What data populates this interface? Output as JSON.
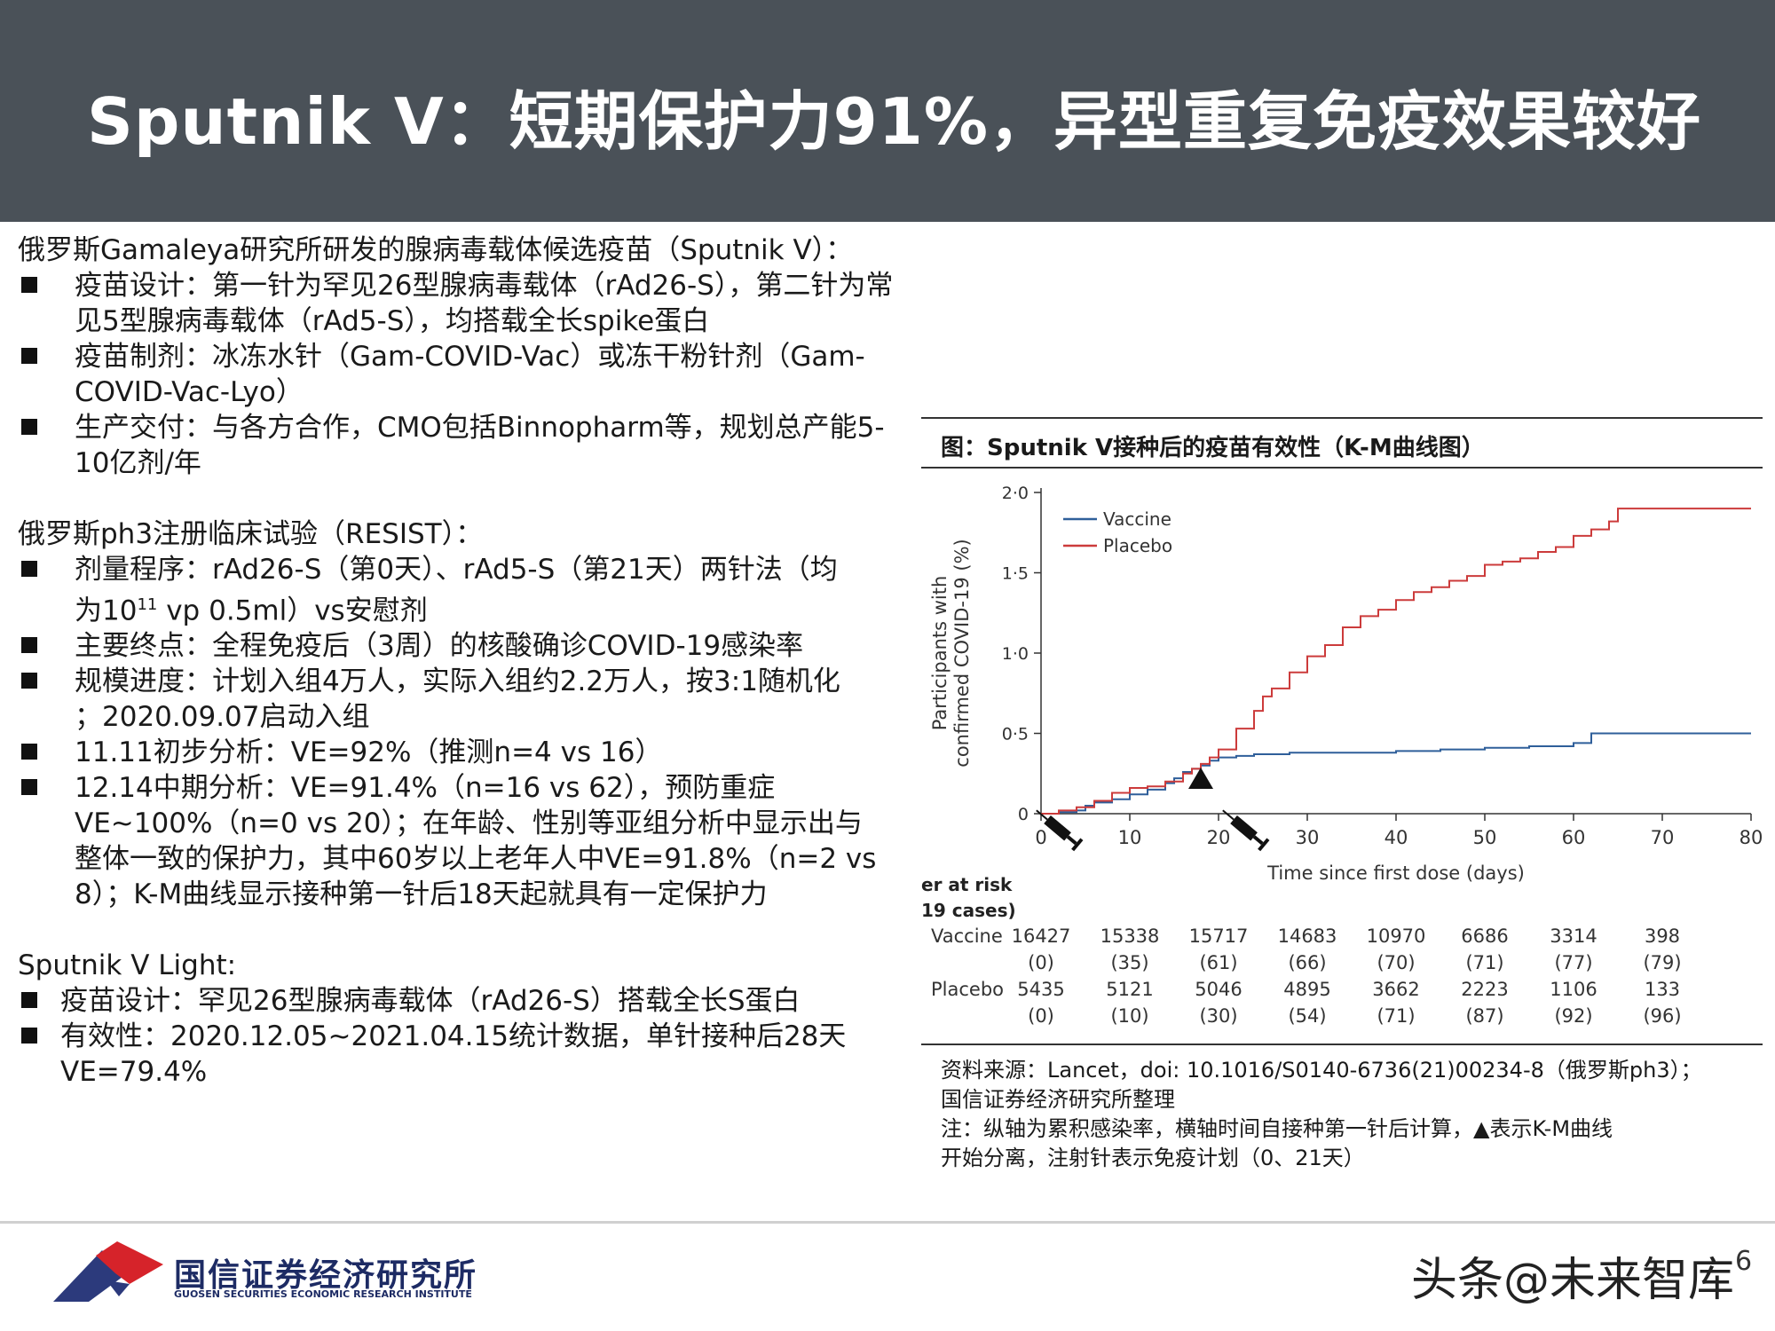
{
  "title": "Sputnik V：短期保护力91%，异型重复免疫效果较好",
  "intro": {
    "heading": "俄罗斯Gamaleya研究所研发的腺病毒载体候选疫苗（Sputnik V）：",
    "bullets": [
      "疫苗设计：第一针为罕见26型腺病毒载体（rAd26-S），第二针为常见5型腺病毒载体（rAd5-S），均搭载全长spike蛋白",
      "疫苗制剂：冰冻水针（Gam-COVID-Vac）或冻干粉针剂（Gam-COVID-Vac-Lyo）",
      "生产交付：与各方合作，CMO包括Binnopharm等，规划总产能5-10亿剂/年"
    ]
  },
  "trial": {
    "heading": "俄罗斯ph3注册临床试验（RESIST）：",
    "b1_line1": "剂量程序：rAd26-S（第0天）、rAd5-S（第21天）两针法（均",
    "b1_line2_pre": "为10",
    "b1_sup": "11",
    "b1_line2_post": " vp 0.5ml）vs安慰剂",
    "b2": "主要终点：全程免疫后（3周）的核酸确诊COVID-19感染率",
    "b3_line1": "规模进度：计划入组4万人，实际入组约2.2万人，按3:1随机化",
    "b3_line2": "；2020.09.07启动入组",
    "b4": "11.11初步分析：VE=92%（推测n=4 vs 16）",
    "b5_lines": [
      "12.14中期分析：VE=91.4%（n=16 vs 62），预防重症",
      "VE~100%（n=0 vs 20）；在年龄、性别等亚组分析中显示出与",
      "整体一致的保护力，其中60岁以上老年人中VE=91.8%（n=2 vs",
      "8）；K-M曲线显示接种第一针后18天起就具有一定保护力"
    ]
  },
  "light": {
    "heading": "Sputnik V Light:",
    "b1": "疫苗设计：罕见26型腺病毒载体（rAd26-S）搭载全长S蛋白",
    "b2_line1": "有效性：2020.12.05~2021.04.15统计数据，单针接种后28天",
    "b2_line2": "VE=79.4%"
  },
  "chart_title": "图：Sputnik V接种后的疫苗有效性（K-M曲线图）",
  "chart_data": {
    "type": "line",
    "xlabel": "Time since first dose (days)",
    "ylabel_line1": "Participants with",
    "ylabel_line2": "confirmed COVID-19 (%)",
    "xlim": [
      0,
      80
    ],
    "ylim": [
      0,
      2.0
    ],
    "x_ticks": [
      "0",
      "10",
      "20",
      "30",
      "40",
      "50",
      "60",
      "70",
      "80"
    ],
    "y_ticks": [
      "0",
      "0·5",
      "1·0",
      "1·5",
      "2·0"
    ],
    "series": [
      {
        "name": "Vaccine",
        "color": "#2f5f9a",
        "points": [
          [
            0,
            0
          ],
          [
            2,
            0.01
          ],
          [
            4,
            0.02
          ],
          [
            5,
            0.05
          ],
          [
            6,
            0.07
          ],
          [
            8,
            0.09
          ],
          [
            10,
            0.12
          ],
          [
            12,
            0.15
          ],
          [
            14,
            0.19
          ],
          [
            15,
            0.22
          ],
          [
            16,
            0.26
          ],
          [
            17,
            0.28
          ],
          [
            18,
            0.3
          ],
          [
            19,
            0.33
          ],
          [
            20,
            0.35
          ],
          [
            22,
            0.36
          ],
          [
            24,
            0.37
          ],
          [
            28,
            0.38
          ],
          [
            35,
            0.38
          ],
          [
            40,
            0.39
          ],
          [
            45,
            0.4
          ],
          [
            50,
            0.41
          ],
          [
            55,
            0.42
          ],
          [
            60,
            0.44
          ],
          [
            62,
            0.5
          ],
          [
            80,
            0.5
          ]
        ]
      },
      {
        "name": "Placebo",
        "color": "#cc3b3b",
        "points": [
          [
            0,
            0
          ],
          [
            2,
            0.02
          ],
          [
            4,
            0.04
          ],
          [
            6,
            0.08
          ],
          [
            8,
            0.13
          ],
          [
            10,
            0.16
          ],
          [
            12,
            0.17
          ],
          [
            14,
            0.2
          ],
          [
            16,
            0.25
          ],
          [
            17,
            0.28
          ],
          [
            18,
            0.31
          ],
          [
            19,
            0.35
          ],
          [
            20,
            0.4
          ],
          [
            22,
            0.53
          ],
          [
            24,
            0.64
          ],
          [
            25,
            0.73
          ],
          [
            26,
            0.78
          ],
          [
            28,
            0.88
          ],
          [
            30,
            0.98
          ],
          [
            32,
            1.05
          ],
          [
            34,
            1.16
          ],
          [
            36,
            1.23
          ],
          [
            38,
            1.27
          ],
          [
            40,
            1.33
          ],
          [
            42,
            1.38
          ],
          [
            44,
            1.41
          ],
          [
            46,
            1.45
          ],
          [
            48,
            1.48
          ],
          [
            50,
            1.55
          ],
          [
            52,
            1.57
          ],
          [
            54,
            1.59
          ],
          [
            56,
            1.63
          ],
          [
            58,
            1.66
          ],
          [
            60,
            1.73
          ],
          [
            62,
            1.77
          ],
          [
            64,
            1.82
          ],
          [
            65,
            1.9
          ],
          [
            80,
            1.9
          ]
        ]
      }
    ],
    "annotations": {
      "triangle_day": 18,
      "injection_days": [
        0,
        21
      ]
    },
    "risk_table": {
      "heading_line1": "er at risk",
      "heading_line2": "19 cases)",
      "rows": [
        {
          "label": "Vaccine",
          "counts": [
            "16427",
            "15338",
            "15717",
            "14683",
            "10970",
            "6686",
            "3314",
            "398"
          ],
          "cases": [
            "(0)",
            "(35)",
            "(61)",
            "(66)",
            "(70)",
            "(71)",
            "(77)",
            "(79)"
          ]
        },
        {
          "label": "Placebo",
          "counts": [
            "5435",
            "5121",
            "5046",
            "4895",
            "3662",
            "2223",
            "1106",
            "133"
          ],
          "cases": [
            "(0)",
            "(10)",
            "(30)",
            "(54)",
            "(71)",
            "(87)",
            "(92)",
            "(96)"
          ]
        }
      ]
    }
  },
  "source": {
    "line1": "资料来源：Lancet，doi: 10.1016/S0140-6736(21)00234-8（俄罗斯ph3）；",
    "line2": "国信证券经济研究所整理",
    "line3": "注：纵轴为累积感染率，横轴时间自接种第一针后计算，▲表示K-M曲线",
    "line4": "开始分离，注射针表示免疫计划（0、21天）"
  },
  "footer": {
    "logo_cn": "国信证券经济研究所",
    "logo_en": "GUOSEN SECURITIES ECONOMIC RESEARCH INSTITUTE",
    "watermark": "头条@未来智库",
    "page": "6"
  }
}
